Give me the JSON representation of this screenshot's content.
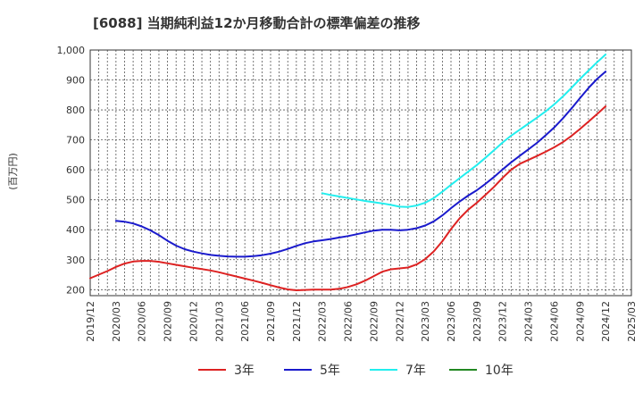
{
  "chart_data": {
    "type": "line",
    "title": "[6088]  当期純利益12か月移動合計の標準偏差の推移",
    "ylabel": "(百万円)",
    "xlabel": "",
    "ylim": [
      180,
      1000
    ],
    "yticks": [
      200,
      300,
      400,
      500,
      600,
      700,
      800,
      900,
      1000
    ],
    "ytick_labels": [
      "200",
      "300",
      "400",
      "500",
      "600",
      "700",
      "800",
      "900",
      "1,000"
    ],
    "xlim": [
      "2019-12",
      "2025-03"
    ],
    "xtick_labels": [
      "2019/12",
      "2020/03",
      "2020/06",
      "2020/09",
      "2020/12",
      "2021/03",
      "2021/06",
      "2021/09",
      "2021/12",
      "2022/03",
      "2022/06",
      "2022/09",
      "2022/12",
      "2023/03",
      "2023/06",
      "2023/09",
      "2023/12",
      "2024/03",
      "2024/06",
      "2024/09",
      "2024/12",
      "2025/03"
    ],
    "grid": true,
    "legend_position": "bottom",
    "series": [
      {
        "name": "3年",
        "color": "#dd2222",
        "points": [
          [
            "2019-12",
            238
          ],
          [
            "2020-01",
            250
          ],
          [
            "2020-02",
            262
          ],
          [
            "2020-03",
            276
          ],
          [
            "2020-04",
            287
          ],
          [
            "2020-05",
            294
          ],
          [
            "2020-06",
            296
          ],
          [
            "2020-07",
            296
          ],
          [
            "2020-08",
            293
          ],
          [
            "2020-09",
            288
          ],
          [
            "2020-10",
            283
          ],
          [
            "2020-11",
            278
          ],
          [
            "2020-12",
            273
          ],
          [
            "2021-01",
            269
          ],
          [
            "2021-02",
            264
          ],
          [
            "2021-03",
            258
          ],
          [
            "2021-04",
            251
          ],
          [
            "2021-05",
            244
          ],
          [
            "2021-06",
            237
          ],
          [
            "2021-07",
            230
          ],
          [
            "2021-08",
            223
          ],
          [
            "2021-09",
            215
          ],
          [
            "2021-10",
            207
          ],
          [
            "2021-11",
            201
          ],
          [
            "2021-12",
            198
          ],
          [
            "2022-01",
            199
          ],
          [
            "2022-02",
            200
          ],
          [
            "2022-03",
            200
          ],
          [
            "2022-04",
            200
          ],
          [
            "2022-05",
            203
          ],
          [
            "2022-06",
            209
          ],
          [
            "2022-07",
            218
          ],
          [
            "2022-08",
            230
          ],
          [
            "2022-09",
            245
          ],
          [
            "2022-10",
            260
          ],
          [
            "2022-11",
            268
          ],
          [
            "2022-12",
            271
          ],
          [
            "2023-01",
            274
          ],
          [
            "2023-02",
            284
          ],
          [
            "2023-03",
            302
          ],
          [
            "2023-04",
            328
          ],
          [
            "2023-05",
            362
          ],
          [
            "2023-06",
            402
          ],
          [
            "2023-07",
            438
          ],
          [
            "2023-08",
            467
          ],
          [
            "2023-09",
            490
          ],
          [
            "2023-10",
            516
          ],
          [
            "2023-11",
            543
          ],
          [
            "2023-12",
            573
          ],
          [
            "2024-01",
            600
          ],
          [
            "2024-02",
            620
          ],
          [
            "2024-03",
            633
          ],
          [
            "2024-04",
            646
          ],
          [
            "2024-05",
            660
          ],
          [
            "2024-06",
            675
          ],
          [
            "2024-07",
            692
          ],
          [
            "2024-08",
            713
          ],
          [
            "2024-09",
            736
          ],
          [
            "2024-10",
            761
          ],
          [
            "2024-11",
            786
          ],
          [
            "2024-12",
            812
          ]
        ]
      },
      {
        "name": "5年",
        "color": "#1a1acc",
        "points": [
          [
            "2020-03",
            430
          ],
          [
            "2020-04",
            427
          ],
          [
            "2020-05",
            421
          ],
          [
            "2020-06",
            411
          ],
          [
            "2020-07",
            398
          ],
          [
            "2020-08",
            382
          ],
          [
            "2020-09",
            363
          ],
          [
            "2020-10",
            347
          ],
          [
            "2020-11",
            335
          ],
          [
            "2020-12",
            327
          ],
          [
            "2021-01",
            321
          ],
          [
            "2021-02",
            316
          ],
          [
            "2021-03",
            313
          ],
          [
            "2021-04",
            311
          ],
          [
            "2021-05",
            310
          ],
          [
            "2021-06",
            310
          ],
          [
            "2021-07",
            312
          ],
          [
            "2021-08",
            315
          ],
          [
            "2021-09",
            320
          ],
          [
            "2021-10",
            327
          ],
          [
            "2021-11",
            336
          ],
          [
            "2021-12",
            346
          ],
          [
            "2022-01",
            355
          ],
          [
            "2022-02",
            361
          ],
          [
            "2022-03",
            365
          ],
          [
            "2022-04",
            369
          ],
          [
            "2022-05",
            374
          ],
          [
            "2022-06",
            379
          ],
          [
            "2022-07",
            385
          ],
          [
            "2022-08",
            391
          ],
          [
            "2022-09",
            397
          ],
          [
            "2022-10",
            400
          ],
          [
            "2022-11",
            400
          ],
          [
            "2022-12",
            398
          ],
          [
            "2023-01",
            400
          ],
          [
            "2023-02",
            405
          ],
          [
            "2023-03",
            414
          ],
          [
            "2023-04",
            428
          ],
          [
            "2023-05",
            448
          ],
          [
            "2023-06",
            472
          ],
          [
            "2023-07",
            494
          ],
          [
            "2023-08",
            514
          ],
          [
            "2023-09",
            532
          ],
          [
            "2023-10",
            553
          ],
          [
            "2023-11",
            576
          ],
          [
            "2023-12",
            601
          ],
          [
            "2024-01",
            625
          ],
          [
            "2024-02",
            647
          ],
          [
            "2024-03",
            668
          ],
          [
            "2024-04",
            690
          ],
          [
            "2024-05",
            715
          ],
          [
            "2024-06",
            741
          ],
          [
            "2024-07",
            771
          ],
          [
            "2024-08",
            804
          ],
          [
            "2024-09",
            839
          ],
          [
            "2024-10",
            873
          ],
          [
            "2024-11",
            903
          ],
          [
            "2024-12",
            928
          ]
        ]
      },
      {
        "name": "7年",
        "color": "#22eeee",
        "points": [
          [
            "2022-03",
            522
          ],
          [
            "2022-04",
            516
          ],
          [
            "2022-05",
            511
          ],
          [
            "2022-06",
            506
          ],
          [
            "2022-07",
            501
          ],
          [
            "2022-08",
            496
          ],
          [
            "2022-09",
            492
          ],
          [
            "2022-10",
            488
          ],
          [
            "2022-11",
            483
          ],
          [
            "2022-12",
            477
          ],
          [
            "2023-01",
            476
          ],
          [
            "2023-02",
            481
          ],
          [
            "2023-03",
            490
          ],
          [
            "2023-04",
            506
          ],
          [
            "2023-05",
            527
          ],
          [
            "2023-06",
            550
          ],
          [
            "2023-07",
            572
          ],
          [
            "2023-08",
            594
          ],
          [
            "2023-09",
            616
          ],
          [
            "2023-10",
            640
          ],
          [
            "2023-11",
            665
          ],
          [
            "2023-12",
            691
          ],
          [
            "2024-01",
            714
          ],
          [
            "2024-02",
            734
          ],
          [
            "2024-03",
            754
          ],
          [
            "2024-04",
            774
          ],
          [
            "2024-05",
            795
          ],
          [
            "2024-06",
            818
          ],
          [
            "2024-07",
            844
          ],
          [
            "2024-08",
            873
          ],
          [
            "2024-09",
            903
          ],
          [
            "2024-10",
            931
          ],
          [
            "2024-11",
            959
          ],
          [
            "2024-12",
            985
          ]
        ]
      },
      {
        "name": "10年",
        "color": "#228822",
        "points": []
      }
    ]
  }
}
